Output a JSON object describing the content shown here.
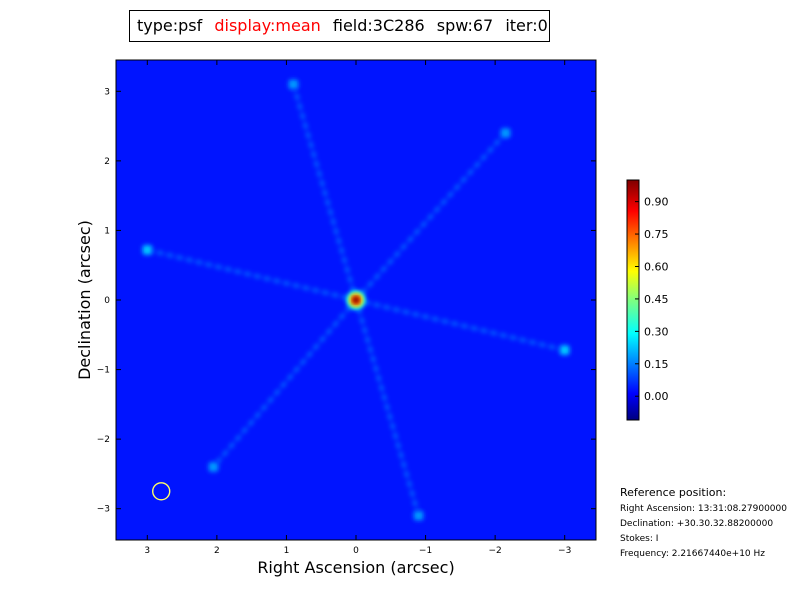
{
  "title": {
    "type": "type:psf",
    "display": "display:mean",
    "display_color": "#ff0000",
    "field": "field:3C286",
    "spw": "spw:67",
    "iter": "iter:0"
  },
  "chart_data": {
    "type": "heatmap",
    "xlabel": "Right Ascension (arcsec)",
    "ylabel": "Declination (arcsec)",
    "xlim": [
      3.45,
      -3.45
    ],
    "ylim": [
      -3.45,
      3.45
    ],
    "x_inverted": true,
    "xticks": [
      3,
      2,
      1,
      0,
      -1,
      -2,
      -3
    ],
    "xtick_labels": [
      "3",
      "2",
      "1",
      "0",
      "−1",
      "−2",
      "−3"
    ],
    "yticks": [
      3,
      2,
      1,
      0,
      -1,
      -2,
      -3
    ],
    "ytick_labels": [
      "3",
      "2",
      "1",
      "0",
      "−1",
      "−2",
      "−3"
    ],
    "colormap": "jet",
    "colorbar": {
      "vmin": -0.11,
      "vmax": 1.0,
      "ticks": [
        0.0,
        0.15,
        0.3,
        0.45,
        0.6,
        0.75,
        0.9
      ],
      "tick_labels": [
        "0.00",
        "0.15",
        "0.30",
        "0.45",
        "0.60",
        "0.75",
        "0.90"
      ]
    },
    "background_level": 0.05,
    "peaks": [
      {
        "ra": 0.0,
        "dec": 0.0,
        "value": 1.0
      },
      {
        "ra": 3.0,
        "dec": 0.72,
        "value": 0.28
      },
      {
        "ra": -3.0,
        "dec": -0.72,
        "value": 0.28
      },
      {
        "ra": 0.9,
        "dec": 3.1,
        "value": 0.22
      },
      {
        "ra": -2.15,
        "dec": 2.4,
        "value": 0.22
      },
      {
        "ra": 2.05,
        "dec": -2.4,
        "value": 0.22
      },
      {
        "ra": -0.9,
        "dec": -3.1,
        "value": 0.22
      }
    ],
    "marker": {
      "type": "circle",
      "ra": 2.8,
      "dec": -2.75,
      "color": "#ffff66"
    }
  },
  "reference": {
    "heading": "Reference position:",
    "ra": "Right Ascension: 13:31:08.27900000",
    "dec": "Declination: +30.30.32.88200000",
    "stokes": "Stokes: I",
    "freq": "Frequency: 2.21667440e+10 Hz"
  }
}
